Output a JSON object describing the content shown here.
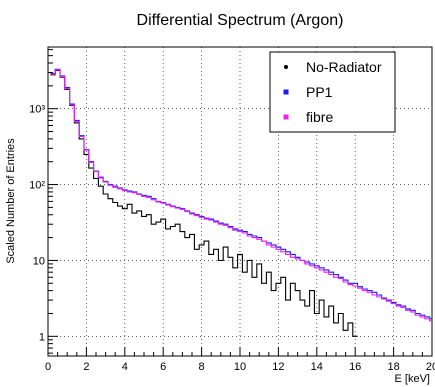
{
  "chart_data": {
    "type": "line",
    "title": "Differential Spectrum (Argon)",
    "xlabel": "E [keV]",
    "ylabel": "Scaled Number of Entries",
    "xlim": [
      0,
      20
    ],
    "ylim": [
      0.55,
      6500
    ],
    "yscale": "log",
    "grid": true,
    "legend_position": "top-right",
    "x_ticks": [
      0,
      2,
      4,
      6,
      8,
      10,
      12,
      14,
      16,
      18,
      20
    ],
    "x_tick_labels": [
      "0",
      "2",
      "4",
      "6",
      "8",
      "10",
      "12",
      "14",
      "16",
      "18",
      "20"
    ],
    "y_ticks": [
      1,
      10,
      100,
      1000
    ],
    "y_tick_labels": [
      "1",
      "10",
      "10²",
      "10³"
    ],
    "series": [
      {
        "name": "No-Radiator",
        "color": "#000000",
        "marker": "dot",
        "x": [
          0.25,
          0.5,
          0.75,
          1.0,
          1.25,
          1.5,
          1.75,
          2.0,
          2.25,
          2.5,
          2.75,
          3.0,
          3.25,
          3.5,
          3.75,
          4.0,
          4.25,
          4.5,
          4.75,
          5.0,
          5.25,
          5.5,
          5.75,
          6.0,
          6.25,
          6.5,
          6.75,
          7.0,
          7.25,
          7.5,
          7.75,
          8.0,
          8.25,
          8.5,
          8.75,
          9.0,
          9.25,
          9.5,
          9.75,
          10.0,
          10.25,
          10.5,
          10.75,
          11.0,
          11.25,
          11.5,
          11.75,
          12.0,
          12.25,
          12.5,
          12.75,
          13.0,
          13.25,
          13.5,
          13.75,
          14.0,
          14.25,
          14.5,
          14.75,
          15.0,
          15.25,
          15.5,
          15.75,
          16.0
        ],
        "y": [
          2800,
          3200,
          2600,
          1800,
          1100,
          650,
          400,
          250,
          165,
          120,
          95,
          75,
          65,
          58,
          52,
          48,
          55,
          42,
          45,
          38,
          40,
          30,
          32,
          35,
          26,
          28,
          30,
          24,
          20,
          22,
          14,
          16,
          18,
          12,
          14,
          10,
          15,
          11,
          8,
          12,
          7,
          10,
          6,
          9,
          5,
          7,
          4,
          5,
          6,
          3,
          5,
          4,
          3,
          2.5,
          4,
          2,
          3,
          1.8,
          2.5,
          1.5,
          2,
          1.2,
          1.5,
          1
        ]
      },
      {
        "name": "PP1",
        "color": "#1a1aff",
        "marker": "square",
        "x": [
          0.25,
          0.5,
          0.75,
          1.0,
          1.25,
          1.5,
          1.75,
          2.0,
          2.25,
          2.5,
          2.75,
          3.0,
          3.25,
          3.5,
          3.75,
          4.0,
          4.25,
          4.5,
          4.75,
          5.0,
          5.25,
          5.5,
          5.75,
          6.0,
          6.25,
          6.5,
          6.75,
          7.0,
          7.25,
          7.5,
          7.75,
          8.0,
          8.25,
          8.5,
          8.75,
          9.0,
          9.25,
          9.5,
          9.75,
          10.0,
          10.25,
          10.5,
          10.75,
          11.0,
          11.25,
          11.5,
          11.75,
          12.0,
          12.25,
          12.5,
          12.75,
          13.0,
          13.25,
          13.5,
          13.75,
          14.0,
          14.25,
          14.5,
          14.75,
          15.0,
          15.25,
          15.5,
          15.75,
          16.0,
          16.25,
          16.5,
          16.75,
          17.0,
          17.25,
          17.5,
          17.75,
          18.0,
          18.25,
          18.5,
          18.75,
          19.0,
          19.25,
          19.5,
          19.75,
          20.0
        ],
        "y": [
          2900,
          3300,
          2700,
          1900,
          1150,
          700,
          440,
          290,
          200,
          150,
          125,
          110,
          100,
          95,
          90,
          85,
          82,
          80,
          75,
          72,
          70,
          65,
          60,
          58,
          55,
          52,
          50,
          48,
          45,
          42,
          40,
          38,
          36,
          35,
          33,
          31,
          30,
          28,
          26,
          25,
          24,
          22,
          21,
          20,
          18,
          17,
          16,
          15,
          14,
          13,
          12,
          11,
          10,
          9.5,
          9,
          8.5,
          8,
          7.5,
          7,
          6.5,
          6,
          5.5,
          5,
          5,
          4.5,
          4.2,
          4,
          3.8,
          3.5,
          3.2,
          3,
          2.8,
          2.6,
          2.5,
          2.3,
          2.2,
          2,
          1.9,
          1.8,
          1.7
        ]
      },
      {
        "name": "fibre",
        "color": "#ee22ee",
        "marker": "square",
        "x": [
          0.25,
          0.5,
          0.75,
          1.0,
          1.25,
          1.5,
          1.75,
          2.0,
          2.25,
          2.5,
          2.75,
          3.0,
          3.25,
          3.5,
          3.75,
          4.0,
          4.25,
          4.5,
          4.75,
          5.0,
          5.25,
          5.5,
          5.75,
          6.0,
          6.25,
          6.5,
          6.75,
          7.0,
          7.25,
          7.5,
          7.75,
          8.0,
          8.25,
          8.5,
          8.75,
          9.0,
          9.25,
          9.5,
          9.75,
          10.0,
          10.25,
          10.5,
          10.75,
          11.0,
          11.25,
          11.5,
          11.75,
          12.0,
          12.25,
          12.5,
          12.75,
          13.0,
          13.25,
          13.5,
          13.75,
          14.0,
          14.25,
          14.5,
          14.75,
          15.0,
          15.25,
          15.5,
          15.75,
          16.0,
          16.25,
          16.5,
          16.75,
          17.0,
          17.25,
          17.5,
          17.75,
          18.0,
          18.25,
          18.5,
          18.75,
          19.0,
          19.25,
          19.5,
          19.75,
          20.0
        ],
        "y": [
          2850,
          3250,
          2650,
          1850,
          1120,
          680,
          430,
          285,
          195,
          148,
          122,
          108,
          98,
          92,
          88,
          83,
          80,
          78,
          74,
          70,
          68,
          63,
          59,
          57,
          54,
          51,
          49,
          47,
          44,
          41,
          39,
          37,
          35,
          34,
          32,
          30,
          29,
          27,
          25,
          24,
          23,
          21,
          20,
          19,
          18,
          16,
          15,
          14,
          13,
          12,
          11,
          10.5,
          10,
          9,
          8.5,
          8,
          7.5,
          7,
          6.5,
          6,
          5.8,
          5.2,
          4.8,
          4.6,
          4.3,
          4,
          3.8,
          3.5,
          3.3,
          3.1,
          2.9,
          2.7,
          2.5,
          2.4,
          2.2,
          2.1,
          1.9,
          1.8,
          1.7,
          1.6
        ]
      }
    ]
  }
}
